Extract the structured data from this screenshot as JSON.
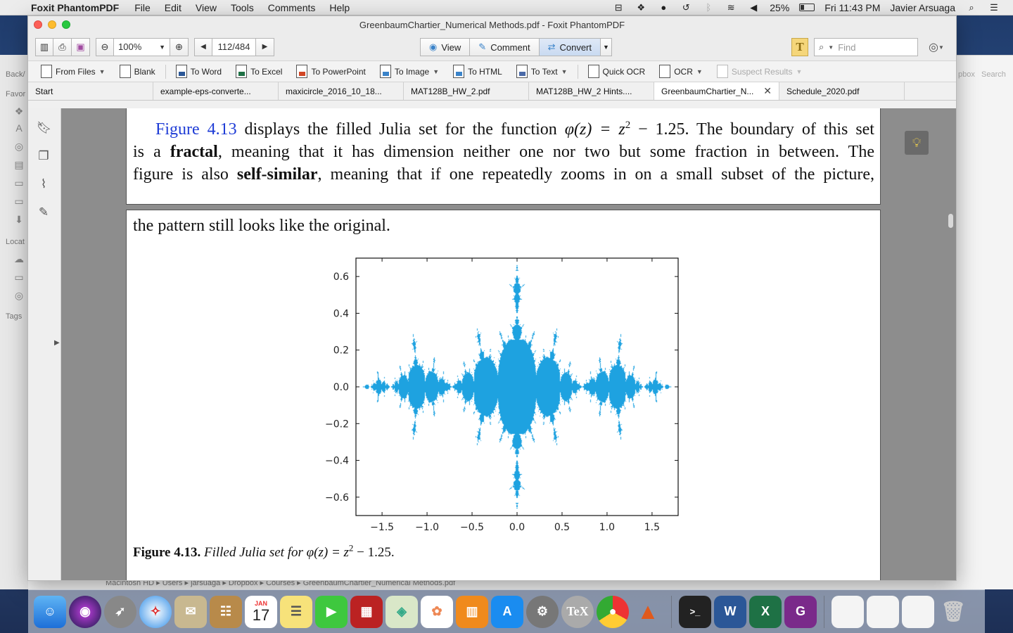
{
  "menubar": {
    "app_name": "Foxit PhantomPDF",
    "menus": [
      "File",
      "Edit",
      "View",
      "Tools",
      "Comments",
      "Help"
    ],
    "battery": "25%",
    "clock": "Fri 11:43 PM",
    "user": "Javier Arsuaga"
  },
  "window": {
    "title": "GreenbaumChartier_Numerical Methods.pdf - Foxit PhantomPDF"
  },
  "toolbar": {
    "zoom": "100%",
    "page": "112/484",
    "modes": [
      "View",
      "Comment",
      "Convert"
    ],
    "active_mode": "Convert",
    "find_placeholder": "Find"
  },
  "convert_bar": {
    "from_files": "From Files",
    "blank": "Blank",
    "to_word": "To Word",
    "to_excel": "To Excel",
    "to_powerpoint": "To PowerPoint",
    "to_image": "To Image",
    "to_html": "To HTML",
    "to_text": "To Text",
    "quick_ocr": "Quick OCR",
    "ocr": "OCR",
    "suspect_results": "Suspect Results"
  },
  "tabs": [
    {
      "label": "Start"
    },
    {
      "label": "example-eps-converte..."
    },
    {
      "label": "maxicircle_2016_10_18..."
    },
    {
      "label": "MAT128B_HW_2.pdf"
    },
    {
      "label": "MAT128B_HW_2 Hints...."
    },
    {
      "label": "GreenbaumChartier_N..."
    },
    {
      "label": "Schedule_2020.pdf"
    }
  ],
  "finder": {
    "back_label": "Back/",
    "favorites": "Favor",
    "locations": "Locat",
    "tags": "Tags",
    "right_a": "pbox",
    "right_b": "Search",
    "path": "Macintosh HD ▸ Users ▸ jarsuaga ▸ Dropbox ▸ Courses ▸ GreenbaumChartier_Numerical Methods.pdf"
  },
  "document": {
    "figref": "Figure 4.13",
    "p1_a": " displays the filled Julia set for the function ",
    "p1_func": "φ(z) = z",
    "p1_b": " − 1.25. The boundary of this set",
    "p2_a": "is a ",
    "p2_bold": "fractal",
    "p2_b": ", meaning that it has dimension neither one nor two but some fraction in between. The",
    "p3_a": "figure is also ",
    "p3_bold": "self-similar",
    "p3_b": ", meaning that if one repeatedly zooms in on a small subset of the picture,",
    "p4": "the pattern still looks like the original.",
    "caption_bold": "Figure 4.13.",
    "caption_text": " Filled Julia set for φ(z) = z",
    "caption_end": " − 1.25.",
    "sup": "2"
  },
  "chart_data": {
    "type": "scatter",
    "x_ticks": [
      "−1.5",
      "−1.0",
      "−0.5",
      "0.0",
      "0.5",
      "1.0",
      "1.5"
    ],
    "y_ticks": [
      "0.6",
      "0.4",
      "0.2",
      "0.0",
      "−0.2",
      "−0.4",
      "−0.6"
    ],
    "xlim": [
      -1.79,
      1.79
    ],
    "ylim": [
      -0.7,
      0.7
    ],
    "grid": false,
    "color": "#1ea2e0"
  },
  "dock": {
    "apps": [
      "finder-icon",
      "siri-icon",
      "launchpad-icon",
      "safari-icon",
      "mail-icon",
      "contacts-icon",
      "calendar-icon",
      "notes-icon",
      "facetime-icon",
      "photo-booth-icon",
      "maps-icon",
      "photos-icon",
      "books-icon",
      "app-store-icon",
      "system-preferences-icon",
      "tex-icon",
      "chrome-icon",
      "matlab-icon",
      "terminal-icon",
      "word-icon",
      "excel-icon",
      "foxit-icon"
    ],
    "calendar_month": "JAN",
    "calendar_day": "17"
  }
}
